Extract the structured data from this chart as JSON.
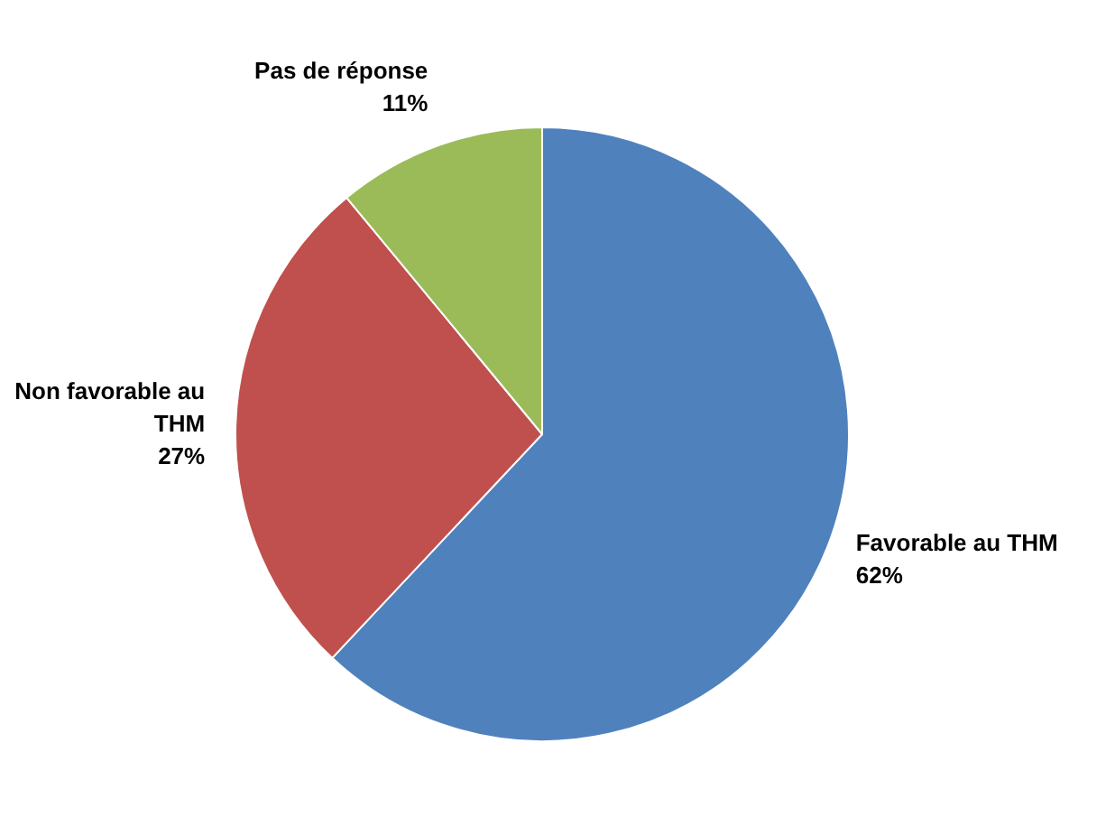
{
  "chart_data": {
    "type": "pie",
    "categories": [
      "Favorable au THM",
      "Non favorable au THM",
      "Pas de réponse"
    ],
    "values": [
      62,
      27,
      11
    ],
    "colors": [
      "#4f81bd",
      "#c0504d",
      "#9bbb59"
    ],
    "value_labels": [
      "62%",
      "27%",
      "11%"
    ]
  }
}
